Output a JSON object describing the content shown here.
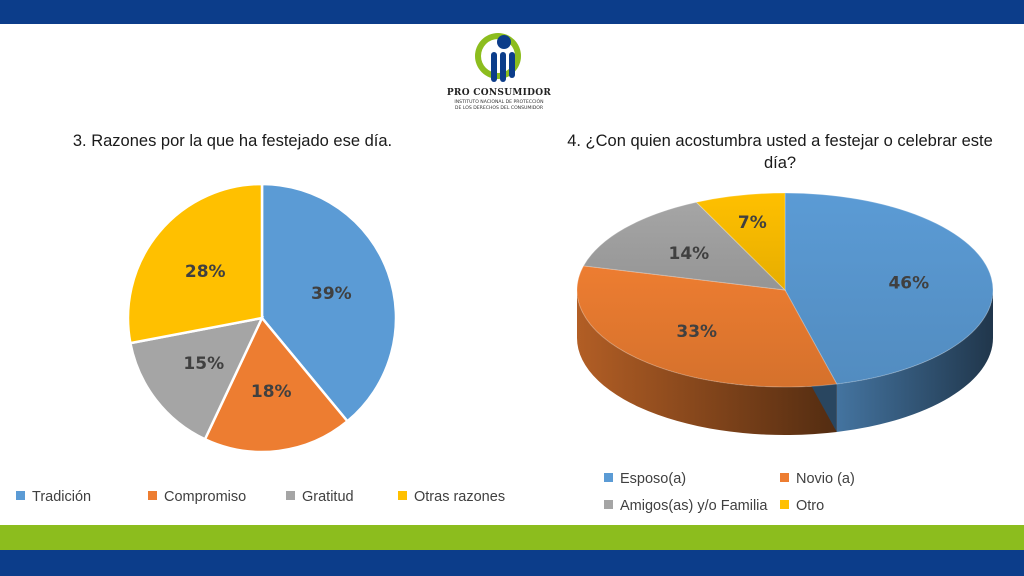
{
  "logo": {
    "name": "PRO CONSUMIDOR",
    "subtitle_line1": "INSTITUTO NACIONAL DE PROTECCIÓN",
    "subtitle_line2": "DE LOS DERECHOS DEL CONSUMIDOR"
  },
  "chart_data": [
    {
      "type": "pie",
      "title": "3. Razones por la que ha festejado ese día.",
      "categories": [
        "Tradición",
        "Compromiso",
        "Gratitud",
        "Otras razones"
      ],
      "values": [
        39,
        18,
        15,
        28
      ],
      "labels": [
        "39%",
        "18%",
        "15%",
        "28%"
      ],
      "colors": [
        "#5b9bd5",
        "#ed7d31",
        "#a5a5a5",
        "#ffc000"
      ],
      "legend_position": "bottom"
    },
    {
      "type": "pie",
      "style": "3d",
      "title": "4. ¿Con quien acostumbra usted a festejar o celebrar este día?",
      "categories": [
        "Esposo(a)",
        "Novio (a)",
        "Amigos(as) y/o Familia",
        "Otro"
      ],
      "values": [
        46,
        33,
        14,
        7
      ],
      "labels": [
        "46%",
        "33%",
        "14%",
        "7%"
      ],
      "colors": [
        "#5b9bd5",
        "#ed7d31",
        "#a5a5a5",
        "#ffc000"
      ],
      "legend_position": "bottom"
    }
  ]
}
